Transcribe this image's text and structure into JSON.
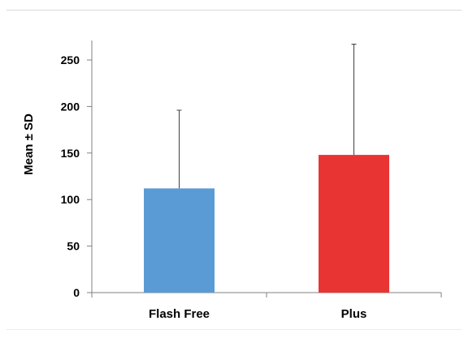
{
  "chart_data": {
    "type": "bar",
    "categories": [
      "Flash Free",
      "Plus"
    ],
    "values": [
      112,
      148
    ],
    "error_sd": [
      84,
      119
    ],
    "colors": [
      "#5b9bd5",
      "#e93434"
    ],
    "title": "",
    "xlabel": "",
    "ylabel": "Mean ± SD",
    "ylim": [
      0,
      250
    ],
    "yticks": [
      "0",
      "50",
      "100",
      "150",
      "200",
      "250"
    ],
    "grid": false,
    "legend": "none"
  }
}
